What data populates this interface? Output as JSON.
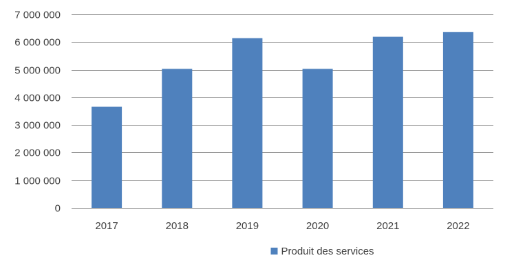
{
  "chart_data": {
    "type": "bar",
    "categories": [
      "2017",
      "2018",
      "2019",
      "2020",
      "2021",
      "2022"
    ],
    "series": [
      {
        "name": "Produit des services",
        "color": "#4f81bd",
        "values": [
          3660000,
          5030000,
          6140000,
          5030000,
          6190000,
          6360000
        ]
      }
    ],
    "ylim": [
      0,
      7000000
    ],
    "yticks": [
      0,
      1000000,
      2000000,
      3000000,
      4000000,
      5000000,
      6000000,
      7000000
    ],
    "ytick_labels": [
      "0",
      "1 000 000",
      "2 000 000",
      "3 000 000",
      "4 000 000",
      "5 000 000",
      "6 000 000",
      "7 000 000"
    ],
    "grid": true,
    "grid_color": "#808080",
    "legend_position": "bottom-center",
    "title": "",
    "xlabel": "",
    "ylabel": ""
  }
}
